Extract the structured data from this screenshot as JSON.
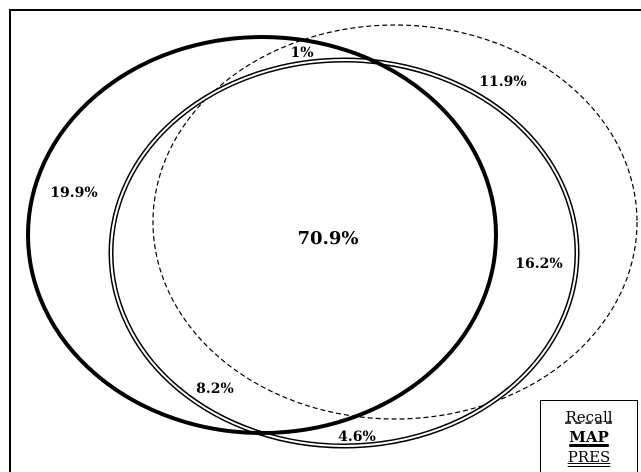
{
  "sets": [
    {
      "name": "Recall",
      "line_style": "dashed"
    },
    {
      "name": "MAP",
      "line_style": "thick"
    },
    {
      "name": "PRES",
      "line_style": "double"
    }
  ],
  "regions": {
    "center": "70.9%",
    "map_only": "19.9%",
    "map_recall_top": "1%",
    "recall_only": "11.9%",
    "pres_recall_right": "16.2%",
    "map_pres_bottom_left": "8.2%",
    "pres_bottom": "4.6%"
  },
  "legend": {
    "recall": "Recall",
    "map": "MAP",
    "pres": "PRES"
  },
  "colors": {
    "line": "#000000",
    "background": "#ffffff"
  }
}
